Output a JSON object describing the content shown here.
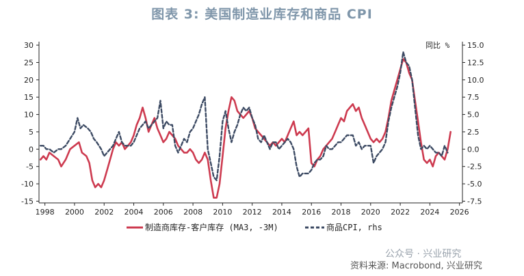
{
  "title": "图表 3:  美国制造业库存和商品 CPI",
  "watermark": "公众号 · 兴业研究",
  "source": "资料来源: Macrobond, 兴业研究",
  "colors": {
    "series1": "#cd3a4f",
    "series2": "#3c4a63",
    "axis": "#222222",
    "title": "#7f96aa"
  },
  "chart_data": {
    "type": "line",
    "title": "美国制造业库存和商品 CPI",
    "x_ticks": [
      1998,
      2000,
      2002,
      2004,
      2006,
      2008,
      2010,
      2012,
      2014,
      2016,
      2018,
      2020,
      2022,
      2024,
      2026
    ],
    "xlim": [
      1997.6,
      2026.2
    ],
    "left_axis": {
      "ticks": [
        30,
        25,
        20,
        15,
        10,
        5,
        0,
        -5,
        -10,
        -15
      ],
      "ylim": [
        -15.5,
        31
      ]
    },
    "right_axis": {
      "label": "同比 %",
      "ticks": [
        "15.0",
        "12.5",
        "10.0",
        "7.5",
        "5.0",
        "2.5",
        "0.0",
        "-2.5",
        "-5.0",
        "-7.5"
      ],
      "ylim": [
        -7.75,
        15.5
      ]
    },
    "series": [
      {
        "name": "制造商库存-客户库存 (MA3, -3M)",
        "axis": "left",
        "style": "solid",
        "points": [
          [
            1997.7,
            -3
          ],
          [
            1997.9,
            -2
          ],
          [
            1998.1,
            -3
          ],
          [
            1998.3,
            -1
          ],
          [
            1998.6,
            -2
          ],
          [
            1998.9,
            -3
          ],
          [
            1999.1,
            -5
          ],
          [
            1999.4,
            -3
          ],
          [
            1999.7,
            0
          ],
          [
            2000.0,
            1
          ],
          [
            2000.3,
            2
          ],
          [
            2000.5,
            -1
          ],
          [
            2000.8,
            -2
          ],
          [
            2001.0,
            -4
          ],
          [
            2001.2,
            -9
          ],
          [
            2001.4,
            -11
          ],
          [
            2001.6,
            -10
          ],
          [
            2001.8,
            -11
          ],
          [
            2002.0,
            -9
          ],
          [
            2002.2,
            -6
          ],
          [
            2002.4,
            -3
          ],
          [
            2002.6,
            0
          ],
          [
            2002.8,
            2
          ],
          [
            2003.0,
            1
          ],
          [
            2003.2,
            2
          ],
          [
            2003.4,
            0
          ],
          [
            2003.6,
            1
          ],
          [
            2003.8,
            2
          ],
          [
            2004.0,
            4
          ],
          [
            2004.2,
            7
          ],
          [
            2004.4,
            9
          ],
          [
            2004.6,
            12
          ],
          [
            2004.8,
            9
          ],
          [
            2005.0,
            5
          ],
          [
            2005.2,
            7
          ],
          [
            2005.4,
            9
          ],
          [
            2005.6,
            6
          ],
          [
            2005.8,
            4
          ],
          [
            2006.0,
            2
          ],
          [
            2006.2,
            3
          ],
          [
            2006.4,
            5
          ],
          [
            2006.6,
            4
          ],
          [
            2006.8,
            3
          ],
          [
            2007.0,
            1
          ],
          [
            2007.2,
            0
          ],
          [
            2007.4,
            -1
          ],
          [
            2007.6,
            -1
          ],
          [
            2007.8,
            0
          ],
          [
            2008.0,
            -1
          ],
          [
            2008.2,
            -3
          ],
          [
            2008.4,
            -4
          ],
          [
            2008.6,
            -3
          ],
          [
            2008.8,
            -1
          ],
          [
            2009.0,
            -3
          ],
          [
            2009.2,
            -9
          ],
          [
            2009.4,
            -14
          ],
          [
            2009.6,
            -14
          ],
          [
            2009.8,
            -10
          ],
          [
            2010.0,
            -2
          ],
          [
            2010.2,
            6
          ],
          [
            2010.4,
            11
          ],
          [
            2010.6,
            15
          ],
          [
            2010.8,
            14
          ],
          [
            2011.0,
            11
          ],
          [
            2011.2,
            10
          ],
          [
            2011.4,
            9
          ],
          [
            2011.6,
            10
          ],
          [
            2011.8,
            11
          ],
          [
            2012.0,
            9
          ],
          [
            2012.2,
            6
          ],
          [
            2012.4,
            5
          ],
          [
            2012.6,
            4
          ],
          [
            2012.8,
            3
          ],
          [
            2013.0,
            2
          ],
          [
            2013.2,
            1
          ],
          [
            2013.4,
            2
          ],
          [
            2013.6,
            1
          ],
          [
            2013.8,
            2
          ],
          [
            2014.0,
            3
          ],
          [
            2014.2,
            2
          ],
          [
            2014.4,
            4
          ],
          [
            2014.6,
            6
          ],
          [
            2014.8,
            8
          ],
          [
            2015.0,
            4
          ],
          [
            2015.2,
            5
          ],
          [
            2015.4,
            4
          ],
          [
            2015.6,
            5
          ],
          [
            2015.8,
            6
          ],
          [
            2016.0,
            -4
          ],
          [
            2016.2,
            -5
          ],
          [
            2016.4,
            -3
          ],
          [
            2016.6,
            -2
          ],
          [
            2016.8,
            0
          ],
          [
            2017.0,
            1
          ],
          [
            2017.2,
            2
          ],
          [
            2017.4,
            3
          ],
          [
            2017.6,
            5
          ],
          [
            2017.8,
            7
          ],
          [
            2018.0,
            9
          ],
          [
            2018.2,
            8
          ],
          [
            2018.4,
            11
          ],
          [
            2018.6,
            12
          ],
          [
            2018.8,
            13
          ],
          [
            2019.0,
            11
          ],
          [
            2019.2,
            12
          ],
          [
            2019.4,
            9
          ],
          [
            2019.6,
            7
          ],
          [
            2019.8,
            5
          ],
          [
            2020.0,
            3
          ],
          [
            2020.2,
            2
          ],
          [
            2020.4,
            3
          ],
          [
            2020.6,
            2
          ],
          [
            2020.8,
            3
          ],
          [
            2021.0,
            5
          ],
          [
            2021.2,
            9
          ],
          [
            2021.4,
            14
          ],
          [
            2021.6,
            17
          ],
          [
            2021.8,
            20
          ],
          [
            2022.0,
            23
          ],
          [
            2022.2,
            26
          ],
          [
            2022.4,
            25
          ],
          [
            2022.6,
            22
          ],
          [
            2022.8,
            20
          ],
          [
            2023.0,
            14
          ],
          [
            2023.2,
            8
          ],
          [
            2023.4,
            2
          ],
          [
            2023.6,
            -3
          ],
          [
            2023.8,
            -4
          ],
          [
            2024.0,
            -3
          ],
          [
            2024.2,
            -5
          ],
          [
            2024.4,
            -2
          ],
          [
            2024.6,
            -1
          ],
          [
            2024.8,
            -2
          ],
          [
            2025.0,
            -3
          ],
          [
            2025.2,
            0
          ],
          [
            2025.4,
            5
          ]
        ]
      },
      {
        "name": "商品CPI, rhs",
        "axis": "right",
        "style": "dashed",
        "points": [
          [
            1997.7,
            0.5
          ],
          [
            1997.9,
            0.5
          ],
          [
            1998.1,
            0
          ],
          [
            1998.3,
            0
          ],
          [
            1998.6,
            -0.5
          ],
          [
            1998.9,
            0
          ],
          [
            1999.1,
            0
          ],
          [
            1999.4,
            0.5
          ],
          [
            1999.7,
            1.5
          ],
          [
            2000.0,
            2.5
          ],
          [
            2000.2,
            4.5
          ],
          [
            2000.4,
            3
          ],
          [
            2000.6,
            3.5
          ],
          [
            2000.9,
            3
          ],
          [
            2001.1,
            2.5
          ],
          [
            2001.3,
            1.5
          ],
          [
            2001.5,
            1
          ],
          [
            2001.8,
            0
          ],
          [
            2002.0,
            -1
          ],
          [
            2002.2,
            -0.5
          ],
          [
            2002.4,
            0
          ],
          [
            2002.6,
            0.5
          ],
          [
            2002.8,
            1.5
          ],
          [
            2003.0,
            2.5
          ],
          [
            2003.2,
            1
          ],
          [
            2003.4,
            0.5
          ],
          [
            2003.6,
            0.5
          ],
          [
            2003.8,
            0.5
          ],
          [
            2004.0,
            1
          ],
          [
            2004.2,
            2
          ],
          [
            2004.4,
            3
          ],
          [
            2004.6,
            3.5
          ],
          [
            2004.8,
            4
          ],
          [
            2005.0,
            3
          ],
          [
            2005.2,
            3.5
          ],
          [
            2005.4,
            4
          ],
          [
            2005.6,
            4.5
          ],
          [
            2005.8,
            7
          ],
          [
            2006.0,
            3
          ],
          [
            2006.2,
            4
          ],
          [
            2006.4,
            3.5
          ],
          [
            2006.6,
            3.5
          ],
          [
            2006.8,
            0.5
          ],
          [
            2007.0,
            -0.5
          ],
          [
            2007.2,
            0.5
          ],
          [
            2007.4,
            1.5
          ],
          [
            2007.6,
            1
          ],
          [
            2007.8,
            2.5
          ],
          [
            2008.0,
            3
          ],
          [
            2008.2,
            4
          ],
          [
            2008.4,
            5
          ],
          [
            2008.6,
            6.5
          ],
          [
            2008.8,
            7.5
          ],
          [
            2009.0,
            0
          ],
          [
            2009.2,
            -2
          ],
          [
            2009.4,
            -4
          ],
          [
            2009.6,
            -4.5
          ],
          [
            2009.8,
            -1
          ],
          [
            2010.0,
            4
          ],
          [
            2010.2,
            5.5
          ],
          [
            2010.4,
            3
          ],
          [
            2010.6,
            1
          ],
          [
            2010.8,
            2.5
          ],
          [
            2011.0,
            3.5
          ],
          [
            2011.2,
            5
          ],
          [
            2011.4,
            6
          ],
          [
            2011.6,
            5.5
          ],
          [
            2011.8,
            6
          ],
          [
            2012.0,
            4.5
          ],
          [
            2012.2,
            3.5
          ],
          [
            2012.4,
            1.5
          ],
          [
            2012.6,
            1
          ],
          [
            2012.8,
            2
          ],
          [
            2013.0,
            1
          ],
          [
            2013.2,
            0
          ],
          [
            2013.4,
            1
          ],
          [
            2013.6,
            1
          ],
          [
            2013.8,
            0
          ],
          [
            2014.0,
            0.5
          ],
          [
            2014.2,
            1
          ],
          [
            2014.4,
            1.5
          ],
          [
            2014.6,
            1
          ],
          [
            2014.8,
            0
          ],
          [
            2015.0,
            -2.5
          ],
          [
            2015.2,
            -4
          ],
          [
            2015.4,
            -3.5
          ],
          [
            2015.6,
            -3.5
          ],
          [
            2015.8,
            -3.5
          ],
          [
            2016.0,
            -3
          ],
          [
            2016.2,
            -2
          ],
          [
            2016.4,
            -1.5
          ],
          [
            2016.6,
            -1.5
          ],
          [
            2016.8,
            -1
          ],
          [
            2017.0,
            0.5
          ],
          [
            2017.2,
            0
          ],
          [
            2017.4,
            0
          ],
          [
            2017.6,
            0.5
          ],
          [
            2017.8,
            1
          ],
          [
            2018.0,
            1
          ],
          [
            2018.2,
            1.5
          ],
          [
            2018.4,
            2
          ],
          [
            2018.6,
            2
          ],
          [
            2018.8,
            2
          ],
          [
            2019.0,
            0.5
          ],
          [
            2019.2,
            1
          ],
          [
            2019.4,
            0
          ],
          [
            2019.6,
            0.5
          ],
          [
            2019.8,
            0.5
          ],
          [
            2020.0,
            0.5
          ],
          [
            2020.2,
            -2
          ],
          [
            2020.4,
            -1
          ],
          [
            2020.6,
            -0.5
          ],
          [
            2020.8,
            0
          ],
          [
            2021.0,
            1
          ],
          [
            2021.2,
            4
          ],
          [
            2021.4,
            6
          ],
          [
            2021.6,
            7.5
          ],
          [
            2021.8,
            9
          ],
          [
            2022.0,
            11
          ],
          [
            2022.2,
            14
          ],
          [
            2022.4,
            12.5
          ],
          [
            2022.6,
            12
          ],
          [
            2022.8,
            10
          ],
          [
            2023.0,
            6
          ],
          [
            2023.2,
            2
          ],
          [
            2023.4,
            0
          ],
          [
            2023.6,
            0.5
          ],
          [
            2023.8,
            0
          ],
          [
            2024.0,
            0.5
          ],
          [
            2024.2,
            0
          ],
          [
            2024.4,
            -0.5
          ],
          [
            2024.6,
            -0.5
          ],
          [
            2024.8,
            -1
          ],
          [
            2025.0,
            0.5
          ],
          [
            2025.2,
            -0.5
          ]
        ]
      }
    ]
  }
}
